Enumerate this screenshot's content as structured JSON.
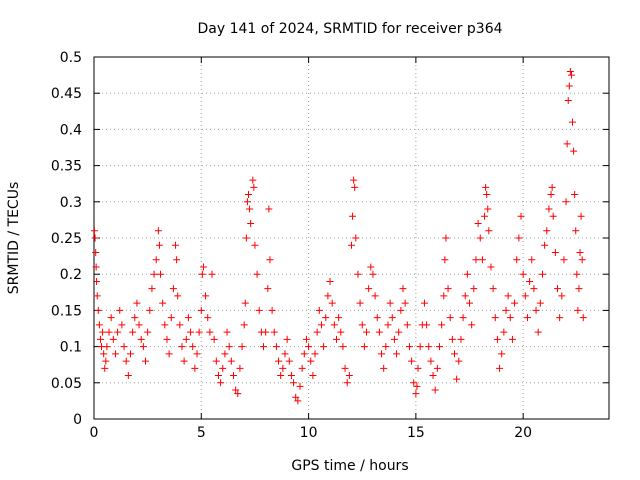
{
  "chart_data": {
    "type": "scatter",
    "title": "Day 141 of 2024, SRMTID for receiver p364",
    "xlabel": "GPS time / hours",
    "ylabel": "SRMTID / TECUs",
    "xlim": [
      0,
      24
    ],
    "ylim": [
      0,
      0.5
    ],
    "xticks": [
      0,
      5,
      10,
      15,
      20
    ],
    "xtick_labels": [
      "0",
      "5",
      "10",
      "15",
      "20"
    ],
    "yticks": [
      0,
      0.05,
      0.1,
      0.15,
      0.2,
      0.25,
      0.3,
      0.35,
      0.4,
      0.45,
      0.5
    ],
    "ytick_labels": [
      "0",
      "0.05",
      "0.1",
      "0.15",
      "0.2",
      "0.25",
      "0.3",
      "0.35",
      "0.4",
      "0.45",
      "0.5"
    ],
    "grid": true,
    "marker": "+",
    "marker_color": "#ff0000",
    "series": [
      {
        "name": "SRMTID",
        "points": [
          [
            0.02,
            0.26
          ],
          [
            0.05,
            0.25
          ],
          [
            0.08,
            0.23
          ],
          [
            0.1,
            0.21
          ],
          [
            0.12,
            0.19
          ],
          [
            0.15,
            0.17
          ],
          [
            0.2,
            0.15
          ],
          [
            0.25,
            0.13
          ],
          [
            0.3,
            0.11
          ],
          [
            0.35,
            0.1
          ],
          [
            0.4,
            0.12
          ],
          [
            0.45,
            0.09
          ],
          [
            0.5,
            0.07
          ],
          [
            0.55,
            0.08
          ],
          [
            0.6,
            0.1
          ],
          [
            0.7,
            0.12
          ],
          [
            0.8,
            0.14
          ],
          [
            0.9,
            0.11
          ],
          [
            1.0,
            0.09
          ],
          [
            1.1,
            0.12
          ],
          [
            1.2,
            0.15
          ],
          [
            1.3,
            0.13
          ],
          [
            1.4,
            0.1
          ],
          [
            1.5,
            0.08
          ],
          [
            1.6,
            0.06
          ],
          [
            1.7,
            0.09
          ],
          [
            1.8,
            0.12
          ],
          [
            1.9,
            0.14
          ],
          [
            2.0,
            0.16
          ],
          [
            2.1,
            0.13
          ],
          [
            2.2,
            0.11
          ],
          [
            2.3,
            0.1
          ],
          [
            2.4,
            0.08
          ],
          [
            2.5,
            0.12
          ],
          [
            2.6,
            0.15
          ],
          [
            2.7,
            0.18
          ],
          [
            2.8,
            0.2
          ],
          [
            2.9,
            0.22
          ],
          [
            3.0,
            0.26
          ],
          [
            3.05,
            0.24
          ],
          [
            3.1,
            0.2
          ],
          [
            3.2,
            0.16
          ],
          [
            3.3,
            0.13
          ],
          [
            3.4,
            0.11
          ],
          [
            3.5,
            0.09
          ],
          [
            3.6,
            0.14
          ],
          [
            3.7,
            0.18
          ],
          [
            3.8,
            0.24
          ],
          [
            3.85,
            0.22
          ],
          [
            3.9,
            0.17
          ],
          [
            4.0,
            0.13
          ],
          [
            4.1,
            0.1
          ],
          [
            4.2,
            0.08
          ],
          [
            4.3,
            0.11
          ],
          [
            4.4,
            0.14
          ],
          [
            4.5,
            0.12
          ],
          [
            4.6,
            0.1
          ],
          [
            4.7,
            0.07
          ],
          [
            4.8,
            0.09
          ],
          [
            4.9,
            0.12
          ],
          [
            5.0,
            0.15
          ],
          [
            5.05,
            0.2
          ],
          [
            5.1,
            0.21
          ],
          [
            5.2,
            0.17
          ],
          [
            5.3,
            0.14
          ],
          [
            5.4,
            0.12
          ],
          [
            5.5,
            0.2
          ],
          [
            5.6,
            0.11
          ],
          [
            5.7,
            0.08
          ],
          [
            5.8,
            0.06
          ],
          [
            5.9,
            0.05
          ],
          [
            6.0,
            0.07
          ],
          [
            6.1,
            0.09
          ],
          [
            6.2,
            0.12
          ],
          [
            6.3,
            0.1
          ],
          [
            6.4,
            0.08
          ],
          [
            6.5,
            0.06
          ],
          [
            6.6,
            0.04
          ],
          [
            6.7,
            0.035
          ],
          [
            6.8,
            0.07
          ],
          [
            6.9,
            0.1
          ],
          [
            7.0,
            0.13
          ],
          [
            7.05,
            0.16
          ],
          [
            7.1,
            0.25
          ],
          [
            7.15,
            0.3
          ],
          [
            7.2,
            0.31
          ],
          [
            7.25,
            0.29
          ],
          [
            7.3,
            0.27
          ],
          [
            7.4,
            0.33
          ],
          [
            7.45,
            0.32
          ],
          [
            7.5,
            0.24
          ],
          [
            7.6,
            0.2
          ],
          [
            7.7,
            0.15
          ],
          [
            7.8,
            0.12
          ],
          [
            7.9,
            0.1
          ],
          [
            8.0,
            0.12
          ],
          [
            8.1,
            0.18
          ],
          [
            8.15,
            0.29
          ],
          [
            8.2,
            0.22
          ],
          [
            8.3,
            0.15
          ],
          [
            8.4,
            0.12
          ],
          [
            8.5,
            0.1
          ],
          [
            8.6,
            0.08
          ],
          [
            8.7,
            0.06
          ],
          [
            8.8,
            0.07
          ],
          [
            8.9,
            0.09
          ],
          [
            9.0,
            0.11
          ],
          [
            9.1,
            0.08
          ],
          [
            9.2,
            0.06
          ],
          [
            9.3,
            0.05
          ],
          [
            9.4,
            0.03
          ],
          [
            9.5,
            0.025
          ],
          [
            9.6,
            0.045
          ],
          [
            9.7,
            0.07
          ],
          [
            9.8,
            0.09
          ],
          [
            9.9,
            0.11
          ],
          [
            10.0,
            0.1
          ],
          [
            10.1,
            0.08
          ],
          [
            10.2,
            0.06
          ],
          [
            10.3,
            0.09
          ],
          [
            10.4,
            0.12
          ],
          [
            10.5,
            0.15
          ],
          [
            10.6,
            0.13
          ],
          [
            10.7,
            0.1
          ],
          [
            10.8,
            0.14
          ],
          [
            10.9,
            0.17
          ],
          [
            11.0,
            0.19
          ],
          [
            11.1,
            0.16
          ],
          [
            11.2,
            0.13
          ],
          [
            11.3,
            0.11
          ],
          [
            11.4,
            0.14
          ],
          [
            11.5,
            0.12
          ],
          [
            11.6,
            0.1
          ],
          [
            11.7,
            0.07
          ],
          [
            11.8,
            0.05
          ],
          [
            11.9,
            0.06
          ],
          [
            12.0,
            0.24
          ],
          [
            12.05,
            0.28
          ],
          [
            12.1,
            0.33
          ],
          [
            12.15,
            0.32
          ],
          [
            12.2,
            0.25
          ],
          [
            12.3,
            0.2
          ],
          [
            12.4,
            0.16
          ],
          [
            12.5,
            0.13
          ],
          [
            12.6,
            0.1
          ],
          [
            12.7,
            0.12
          ],
          [
            12.8,
            0.18
          ],
          [
            12.9,
            0.21
          ],
          [
            13.0,
            0.2
          ],
          [
            13.1,
            0.17
          ],
          [
            13.2,
            0.14
          ],
          [
            13.3,
            0.12
          ],
          [
            13.4,
            0.09
          ],
          [
            13.5,
            0.07
          ],
          [
            13.6,
            0.1
          ],
          [
            13.7,
            0.13
          ],
          [
            13.8,
            0.16
          ],
          [
            13.9,
            0.14
          ],
          [
            14.0,
            0.11
          ],
          [
            14.1,
            0.09
          ],
          [
            14.2,
            0.12
          ],
          [
            14.3,
            0.15
          ],
          [
            14.4,
            0.18
          ],
          [
            14.5,
            0.16
          ],
          [
            14.6,
            0.13
          ],
          [
            14.7,
            0.1
          ],
          [
            14.8,
            0.08
          ],
          [
            14.9,
            0.05
          ],
          [
            15.0,
            0.035
          ],
          [
            15.05,
            0.045
          ],
          [
            15.1,
            0.07
          ],
          [
            15.2,
            0.1
          ],
          [
            15.3,
            0.13
          ],
          [
            15.4,
            0.16
          ],
          [
            15.5,
            0.13
          ],
          [
            15.6,
            0.1
          ],
          [
            15.7,
            0.08
          ],
          [
            15.8,
            0.06
          ],
          [
            15.9,
            0.04
          ],
          [
            16.0,
            0.07
          ],
          [
            16.1,
            0.1
          ],
          [
            16.2,
            0.13
          ],
          [
            16.3,
            0.17
          ],
          [
            16.35,
            0.22
          ],
          [
            16.4,
            0.25
          ],
          [
            16.5,
            0.18
          ],
          [
            16.6,
            0.14
          ],
          [
            16.7,
            0.11
          ],
          [
            16.8,
            0.09
          ],
          [
            16.9,
            0.055
          ],
          [
            17.0,
            0.08
          ],
          [
            17.1,
            0.11
          ],
          [
            17.2,
            0.14
          ],
          [
            17.3,
            0.17
          ],
          [
            17.4,
            0.2
          ],
          [
            17.5,
            0.16
          ],
          [
            17.6,
            0.13
          ],
          [
            17.7,
            0.18
          ],
          [
            17.8,
            0.22
          ],
          [
            17.9,
            0.27
          ],
          [
            18.0,
            0.25
          ],
          [
            18.1,
            0.22
          ],
          [
            18.2,
            0.28
          ],
          [
            18.25,
            0.32
          ],
          [
            18.3,
            0.31
          ],
          [
            18.35,
            0.29
          ],
          [
            18.4,
            0.26
          ],
          [
            18.5,
            0.21
          ],
          [
            18.6,
            0.18
          ],
          [
            18.7,
            0.14
          ],
          [
            18.8,
            0.11
          ],
          [
            18.9,
            0.07
          ],
          [
            19.0,
            0.09
          ],
          [
            19.1,
            0.12
          ],
          [
            19.2,
            0.15
          ],
          [
            19.3,
            0.17
          ],
          [
            19.4,
            0.14
          ],
          [
            19.5,
            0.11
          ],
          [
            19.6,
            0.16
          ],
          [
            19.7,
            0.22
          ],
          [
            19.8,
            0.25
          ],
          [
            19.9,
            0.28
          ],
          [
            20.0,
            0.2
          ],
          [
            20.1,
            0.17
          ],
          [
            20.2,
            0.14
          ],
          [
            20.3,
            0.19
          ],
          [
            20.4,
            0.22
          ],
          [
            20.5,
            0.18
          ],
          [
            20.6,
            0.15
          ],
          [
            20.7,
            0.12
          ],
          [
            20.8,
            0.16
          ],
          [
            20.9,
            0.2
          ],
          [
            21.0,
            0.24
          ],
          [
            21.1,
            0.26
          ],
          [
            21.2,
            0.29
          ],
          [
            21.3,
            0.31
          ],
          [
            21.35,
            0.32
          ],
          [
            21.4,
            0.28
          ],
          [
            21.5,
            0.23
          ],
          [
            21.6,
            0.18
          ],
          [
            21.7,
            0.14
          ],
          [
            21.8,
            0.17
          ],
          [
            21.9,
            0.22
          ],
          [
            22.0,
            0.3
          ],
          [
            22.05,
            0.38
          ],
          [
            22.1,
            0.44
          ],
          [
            22.15,
            0.46
          ],
          [
            22.2,
            0.48
          ],
          [
            22.25,
            0.475
          ],
          [
            22.3,
            0.41
          ],
          [
            22.35,
            0.37
          ],
          [
            22.4,
            0.31
          ],
          [
            22.45,
            0.26
          ],
          [
            22.5,
            0.2
          ],
          [
            22.55,
            0.15
          ],
          [
            22.6,
            0.18
          ],
          [
            22.65,
            0.23
          ],
          [
            22.7,
            0.28
          ],
          [
            22.75,
            0.22
          ],
          [
            22.8,
            0.14
          ]
        ]
      }
    ]
  }
}
